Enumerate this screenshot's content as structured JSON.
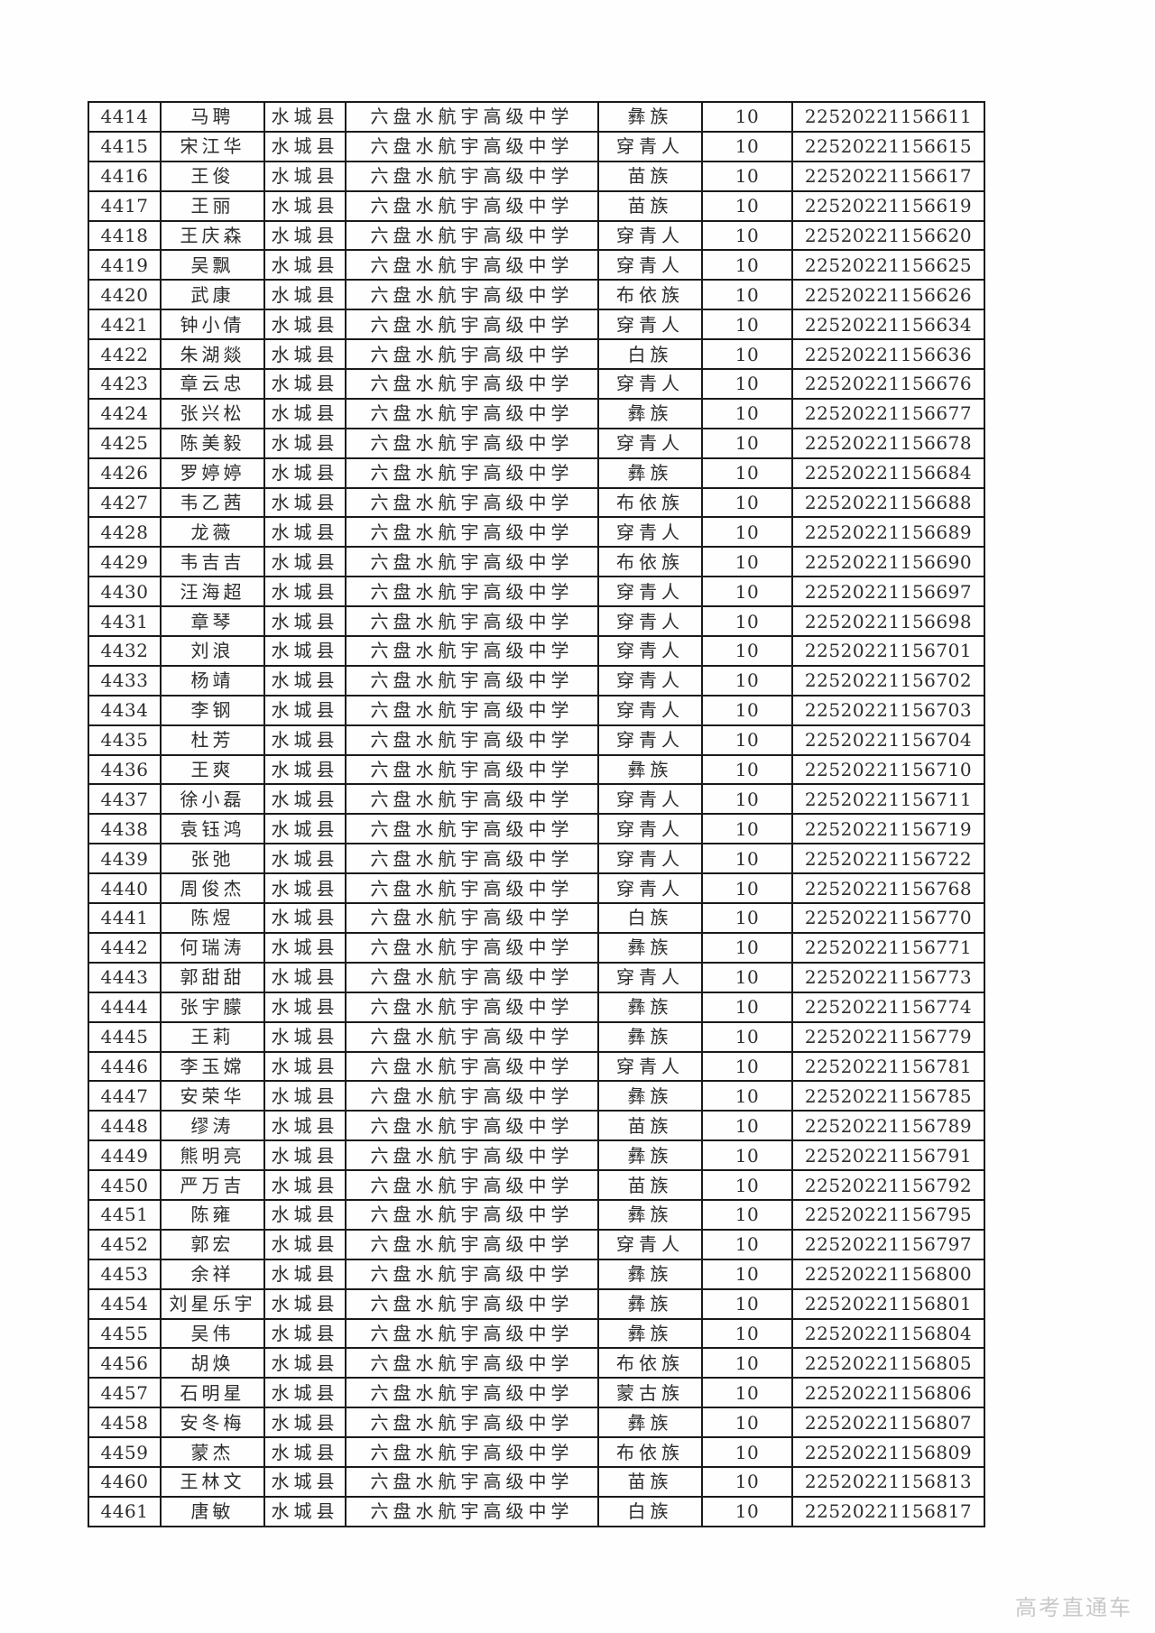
{
  "colors": {
    "border": "#1a1a1a",
    "text": "#2d2d2d",
    "watermark": "#c9c9c9",
    "background": "#fefefe"
  },
  "watermark": {
    "text": "高考直通车"
  },
  "table": {
    "column_keys": [
      "no",
      "name",
      "county",
      "school",
      "ethnicity",
      "score",
      "id"
    ],
    "rows": [
      {
        "no": "4414",
        "name": "马聘",
        "county": "水城县",
        "school": "六盘水航宇高级中学",
        "ethnicity": "彝族",
        "score": "10",
        "id": "22520221156611"
      },
      {
        "no": "4415",
        "name": "宋江华",
        "county": "水城县",
        "school": "六盘水航宇高级中学",
        "ethnicity": "穿青人",
        "score": "10",
        "id": "22520221156615"
      },
      {
        "no": "4416",
        "name": "王俊",
        "county": "水城县",
        "school": "六盘水航宇高级中学",
        "ethnicity": "苗族",
        "score": "10",
        "id": "22520221156617"
      },
      {
        "no": "4417",
        "name": "王丽",
        "county": "水城县",
        "school": "六盘水航宇高级中学",
        "ethnicity": "苗族",
        "score": "10",
        "id": "22520221156619"
      },
      {
        "no": "4418",
        "name": "王庆森",
        "county": "水城县",
        "school": "六盘水航宇高级中学",
        "ethnicity": "穿青人",
        "score": "10",
        "id": "22520221156620"
      },
      {
        "no": "4419",
        "name": "吴飘",
        "county": "水城县",
        "school": "六盘水航宇高级中学",
        "ethnicity": "穿青人",
        "score": "10",
        "id": "22520221156625"
      },
      {
        "no": "4420",
        "name": "武康",
        "county": "水城县",
        "school": "六盘水航宇高级中学",
        "ethnicity": "布依族",
        "score": "10",
        "id": "22520221156626"
      },
      {
        "no": "4421",
        "name": "钟小倩",
        "county": "水城县",
        "school": "六盘水航宇高级中学",
        "ethnicity": "穿青人",
        "score": "10",
        "id": "22520221156634"
      },
      {
        "no": "4422",
        "name": "朱湖燚",
        "county": "水城县",
        "school": "六盘水航宇高级中学",
        "ethnicity": "白族",
        "score": "10",
        "id": "22520221156636"
      },
      {
        "no": "4423",
        "name": "章云忠",
        "county": "水城县",
        "school": "六盘水航宇高级中学",
        "ethnicity": "穿青人",
        "score": "10",
        "id": "22520221156676"
      },
      {
        "no": "4424",
        "name": "张兴松",
        "county": "水城县",
        "school": "六盘水航宇高级中学",
        "ethnicity": "彝族",
        "score": "10",
        "id": "22520221156677"
      },
      {
        "no": "4425",
        "name": "陈美毅",
        "county": "水城县",
        "school": "六盘水航宇高级中学",
        "ethnicity": "穿青人",
        "score": "10",
        "id": "22520221156678"
      },
      {
        "no": "4426",
        "name": "罗婷婷",
        "county": "水城县",
        "school": "六盘水航宇高级中学",
        "ethnicity": "彝族",
        "score": "10",
        "id": "22520221156684"
      },
      {
        "no": "4427",
        "name": "韦乙茜",
        "county": "水城县",
        "school": "六盘水航宇高级中学",
        "ethnicity": "布依族",
        "score": "10",
        "id": "22520221156688"
      },
      {
        "no": "4428",
        "name": "龙薇",
        "county": "水城县",
        "school": "六盘水航宇高级中学",
        "ethnicity": "穿青人",
        "score": "10",
        "id": "22520221156689"
      },
      {
        "no": "4429",
        "name": "韦吉吉",
        "county": "水城县",
        "school": "六盘水航宇高级中学",
        "ethnicity": "布依族",
        "score": "10",
        "id": "22520221156690"
      },
      {
        "no": "4430",
        "name": "汪海超",
        "county": "水城县",
        "school": "六盘水航宇高级中学",
        "ethnicity": "穿青人",
        "score": "10",
        "id": "22520221156697"
      },
      {
        "no": "4431",
        "name": "章琴",
        "county": "水城县",
        "school": "六盘水航宇高级中学",
        "ethnicity": "穿青人",
        "score": "10",
        "id": "22520221156698"
      },
      {
        "no": "4432",
        "name": "刘浪",
        "county": "水城县",
        "school": "六盘水航宇高级中学",
        "ethnicity": "穿青人",
        "score": "10",
        "id": "22520221156701"
      },
      {
        "no": "4433",
        "name": "杨靖",
        "county": "水城县",
        "school": "六盘水航宇高级中学",
        "ethnicity": "穿青人",
        "score": "10",
        "id": "22520221156702"
      },
      {
        "no": "4434",
        "name": "李钢",
        "county": "水城县",
        "school": "六盘水航宇高级中学",
        "ethnicity": "穿青人",
        "score": "10",
        "id": "22520221156703"
      },
      {
        "no": "4435",
        "name": "杜芳",
        "county": "水城县",
        "school": "六盘水航宇高级中学",
        "ethnicity": "穿青人",
        "score": "10",
        "id": "22520221156704"
      },
      {
        "no": "4436",
        "name": "王爽",
        "county": "水城县",
        "school": "六盘水航宇高级中学",
        "ethnicity": "彝族",
        "score": "10",
        "id": "22520221156710"
      },
      {
        "no": "4437",
        "name": "徐小磊",
        "county": "水城县",
        "school": "六盘水航宇高级中学",
        "ethnicity": "穿青人",
        "score": "10",
        "id": "22520221156711"
      },
      {
        "no": "4438",
        "name": "袁钰鸿",
        "county": "水城县",
        "school": "六盘水航宇高级中学",
        "ethnicity": "穿青人",
        "score": "10",
        "id": "22520221156719"
      },
      {
        "no": "4439",
        "name": "张弛",
        "county": "水城县",
        "school": "六盘水航宇高级中学",
        "ethnicity": "穿青人",
        "score": "10",
        "id": "22520221156722"
      },
      {
        "no": "4440",
        "name": "周俊杰",
        "county": "水城县",
        "school": "六盘水航宇高级中学",
        "ethnicity": "穿青人",
        "score": "10",
        "id": "22520221156768"
      },
      {
        "no": "4441",
        "name": "陈煜",
        "county": "水城县",
        "school": "六盘水航宇高级中学",
        "ethnicity": "白族",
        "score": "10",
        "id": "22520221156770"
      },
      {
        "no": "4442",
        "name": "何瑞涛",
        "county": "水城县",
        "school": "六盘水航宇高级中学",
        "ethnicity": "彝族",
        "score": "10",
        "id": "22520221156771"
      },
      {
        "no": "4443",
        "name": "郭甜甜",
        "county": "水城县",
        "school": "六盘水航宇高级中学",
        "ethnicity": "穿青人",
        "score": "10",
        "id": "22520221156773"
      },
      {
        "no": "4444",
        "name": "张宇朦",
        "county": "水城县",
        "school": "六盘水航宇高级中学",
        "ethnicity": "彝族",
        "score": "10",
        "id": "22520221156774"
      },
      {
        "no": "4445",
        "name": "王莉",
        "county": "水城县",
        "school": "六盘水航宇高级中学",
        "ethnicity": "彝族",
        "score": "10",
        "id": "22520221156779"
      },
      {
        "no": "4446",
        "name": "李玉嫦",
        "county": "水城县",
        "school": "六盘水航宇高级中学",
        "ethnicity": "穿青人",
        "score": "10",
        "id": "22520221156781"
      },
      {
        "no": "4447",
        "name": "安荣华",
        "county": "水城县",
        "school": "六盘水航宇高级中学",
        "ethnicity": "彝族",
        "score": "10",
        "id": "22520221156785"
      },
      {
        "no": "4448",
        "name": "缪涛",
        "county": "水城县",
        "school": "六盘水航宇高级中学",
        "ethnicity": "苗族",
        "score": "10",
        "id": "22520221156789"
      },
      {
        "no": "4449",
        "name": "熊明亮",
        "county": "水城县",
        "school": "六盘水航宇高级中学",
        "ethnicity": "彝族",
        "score": "10",
        "id": "22520221156791"
      },
      {
        "no": "4450",
        "name": "严万吉",
        "county": "水城县",
        "school": "六盘水航宇高级中学",
        "ethnicity": "苗族",
        "score": "10",
        "id": "22520221156792"
      },
      {
        "no": "4451",
        "name": "陈雍",
        "county": "水城县",
        "school": "六盘水航宇高级中学",
        "ethnicity": "彝族",
        "score": "10",
        "id": "22520221156795"
      },
      {
        "no": "4452",
        "name": "郭宏",
        "county": "水城县",
        "school": "六盘水航宇高级中学",
        "ethnicity": "穿青人",
        "score": "10",
        "id": "22520221156797"
      },
      {
        "no": "4453",
        "name": "余祥",
        "county": "水城县",
        "school": "六盘水航宇高级中学",
        "ethnicity": "彝族",
        "score": "10",
        "id": "22520221156800"
      },
      {
        "no": "4454",
        "name": "刘星乐宇",
        "county": "水城县",
        "school": "六盘水航宇高级中学",
        "ethnicity": "彝族",
        "score": "10",
        "id": "22520221156801"
      },
      {
        "no": "4455",
        "name": "吴伟",
        "county": "水城县",
        "school": "六盘水航宇高级中学",
        "ethnicity": "彝族",
        "score": "10",
        "id": "22520221156804"
      },
      {
        "no": "4456",
        "name": "胡焕",
        "county": "水城县",
        "school": "六盘水航宇高级中学",
        "ethnicity": "布依族",
        "score": "10",
        "id": "22520221156805"
      },
      {
        "no": "4457",
        "name": "石明星",
        "county": "水城县",
        "school": "六盘水航宇高级中学",
        "ethnicity": "蒙古族",
        "score": "10",
        "id": "22520221156806"
      },
      {
        "no": "4458",
        "name": "安冬梅",
        "county": "水城县",
        "school": "六盘水航宇高级中学",
        "ethnicity": "彝族",
        "score": "10",
        "id": "22520221156807"
      },
      {
        "no": "4459",
        "name": "蒙杰",
        "county": "水城县",
        "school": "六盘水航宇高级中学",
        "ethnicity": "布依族",
        "score": "10",
        "id": "22520221156809"
      },
      {
        "no": "4460",
        "name": "王林文",
        "county": "水城县",
        "school": "六盘水航宇高级中学",
        "ethnicity": "苗族",
        "score": "10",
        "id": "22520221156813"
      },
      {
        "no": "4461",
        "name": "唐敏",
        "county": "水城县",
        "school": "六盘水航宇高级中学",
        "ethnicity": "白族",
        "score": "10",
        "id": "22520221156817"
      }
    ]
  }
}
